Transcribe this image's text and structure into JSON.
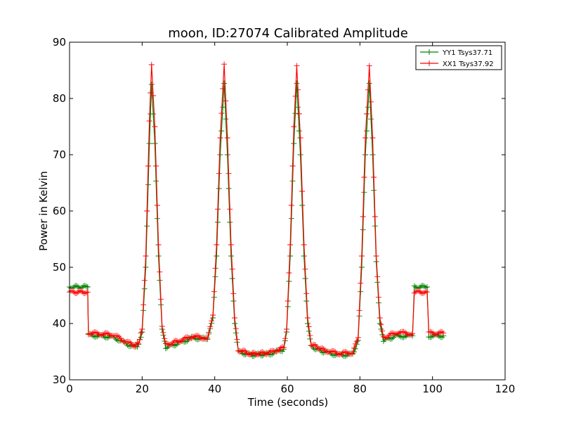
{
  "chart_data": {
    "type": "line",
    "title": "moon, ID:27074 Calibrated Amplitude",
    "xlabel": "Time (seconds)",
    "ylabel": "Power in Kelvin",
    "xlim": [
      0,
      120
    ],
    "ylim": [
      30,
      90
    ],
    "xticks": [
      0,
      20,
      40,
      60,
      80,
      100,
      120
    ],
    "yticks": [
      30,
      40,
      50,
      60,
      70,
      80,
      90
    ],
    "grid": false,
    "legend_position": "top-right",
    "series": [
      {
        "name": "YY1 Tsys37.71",
        "color": "#008000",
        "marker": "+",
        "x": [
          0,
          5,
          5.2,
          8,
          12,
          14,
          16,
          18,
          19,
          20,
          21,
          22,
          22.6,
          23.5,
          24.5,
          25.5,
          26.5,
          30,
          34,
          38,
          39.5,
          40.5,
          41.5,
          42.6,
          43.5,
          44.5,
          45.5,
          46.5,
          50,
          55,
          59,
          59.8,
          60.8,
          61.8,
          62.6,
          63.6,
          64.6,
          65.6,
          66.6,
          70,
          74,
          78,
          79.5,
          80.5,
          81.5,
          82.6,
          83.5,
          84.5,
          85.5,
          86.5,
          90,
          94.5,
          95,
          98.5,
          99,
          103
        ],
        "y": [
          46.5,
          46.5,
          38,
          37.8,
          37.6,
          37,
          36.3,
          35.9,
          36.2,
          38.5,
          50,
          72,
          82.5,
          72,
          52,
          39,
          35.8,
          36.5,
          37.5,
          37.2,
          41,
          52,
          70,
          82.7,
          70,
          52,
          40,
          35,
          34.4,
          34.6,
          35.4,
          38.5,
          52,
          72,
          82.7,
          70,
          52,
          40,
          35.9,
          35,
          34.4,
          34.5,
          37,
          50,
          70,
          82.7,
          70,
          51,
          40,
          37,
          37.8,
          37.8,
          46.5,
          46.5,
          37.8,
          37.8
        ]
      },
      {
        "name": "XX1 Tsys37.92",
        "color": "#ff0000",
        "marker": "+",
        "x": [
          0,
          5,
          5.2,
          8,
          12,
          14,
          16,
          18,
          19,
          20,
          21,
          22,
          22.6,
          23.5,
          24.5,
          25.5,
          26.5,
          30,
          34,
          38,
          39.5,
          40.5,
          41.5,
          42.6,
          43.5,
          44.5,
          45.5,
          46.5,
          50,
          55,
          59,
          59.8,
          60.8,
          61.8,
          62.6,
          63.6,
          64.6,
          65.6,
          66.6,
          70,
          74,
          78,
          79.5,
          80.5,
          81.5,
          82.6,
          83.5,
          84.5,
          85.5,
          86.5,
          90,
          94.5,
          95,
          98.5,
          99,
          103
        ],
        "y": [
          45.6,
          45.6,
          38.3,
          38.2,
          38,
          37.3,
          36.6,
          36.1,
          36.5,
          39,
          52,
          76,
          86,
          75,
          54,
          39.5,
          36.2,
          36.9,
          37.7,
          37.4,
          41.5,
          54,
          73,
          86.1,
          73,
          54,
          41,
          35.3,
          34.6,
          34.8,
          35.7,
          39,
          54,
          75,
          85.8,
          73,
          54,
          41,
          36.3,
          35.3,
          34.7,
          34.8,
          37.5,
          52,
          73,
          85.8,
          73,
          52,
          41,
          37.5,
          38.4,
          38.2,
          45.6,
          45.6,
          38.3,
          38.3
        ]
      }
    ]
  }
}
